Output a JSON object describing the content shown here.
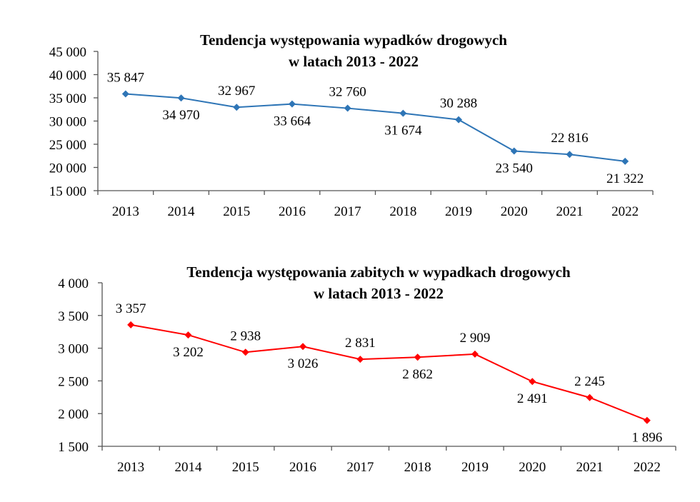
{
  "chart_data": [
    {
      "type": "line",
      "title": [
        "Tendencja występowania wypadków drogowych",
        "w latach 2013 - 2022"
      ],
      "categories": [
        "2013",
        "2014",
        "2015",
        "2016",
        "2017",
        "2018",
        "2019",
        "2020",
        "2021",
        "2022"
      ],
      "values": [
        35847,
        34970,
        32967,
        33664,
        32760,
        31674,
        30288,
        23540,
        22816,
        21322
      ],
      "data_labels": [
        "35 847",
        "34 970",
        "32 967",
        "33 664",
        "32 760",
        "31 674",
        "30 288",
        "23 540",
        "22 816",
        "21 322"
      ],
      "label_positions": [
        "above",
        "below",
        "above",
        "below",
        "above",
        "below",
        "above",
        "below",
        "above",
        "below"
      ],
      "ylim": [
        15000,
        45000
      ],
      "yticks": [
        15000,
        20000,
        25000,
        30000,
        35000,
        40000,
        45000
      ],
      "ytick_labels": [
        "15 000",
        "20 000",
        "25 000",
        "30 000",
        "35 000",
        "40 000",
        "45 000"
      ],
      "color": "#2e75b6",
      "marker": "diamond",
      "grid": false,
      "legend": "none"
    },
    {
      "type": "line",
      "title": [
        "Tendencja występowania zabitych w wypadkach drogowych",
        "w latach 2013 - 2022"
      ],
      "categories": [
        "2013",
        "2014",
        "2015",
        "2016",
        "2017",
        "2018",
        "2019",
        "2020",
        "2021",
        "2022"
      ],
      "values": [
        3357,
        3202,
        2938,
        3026,
        2831,
        2862,
        2909,
        2491,
        2245,
        1896
      ],
      "data_labels": [
        "3 357",
        "3 202",
        "2 938",
        "3 026",
        "2 831",
        "2 862",
        "2 909",
        "2 491",
        "2 245",
        "1 896"
      ],
      "label_positions": [
        "above",
        "below",
        "above",
        "below",
        "above",
        "below",
        "above",
        "below",
        "above",
        "below"
      ],
      "ylim": [
        1500,
        4000
      ],
      "yticks": [
        1500,
        2000,
        2500,
        3000,
        3500,
        4000
      ],
      "ytick_labels": [
        "1 500",
        "2 000",
        "2 500",
        "3 000",
        "3 500",
        "4 000"
      ],
      "color": "#ff0000",
      "marker": "diamond",
      "grid": false,
      "legend": "none"
    }
  ]
}
